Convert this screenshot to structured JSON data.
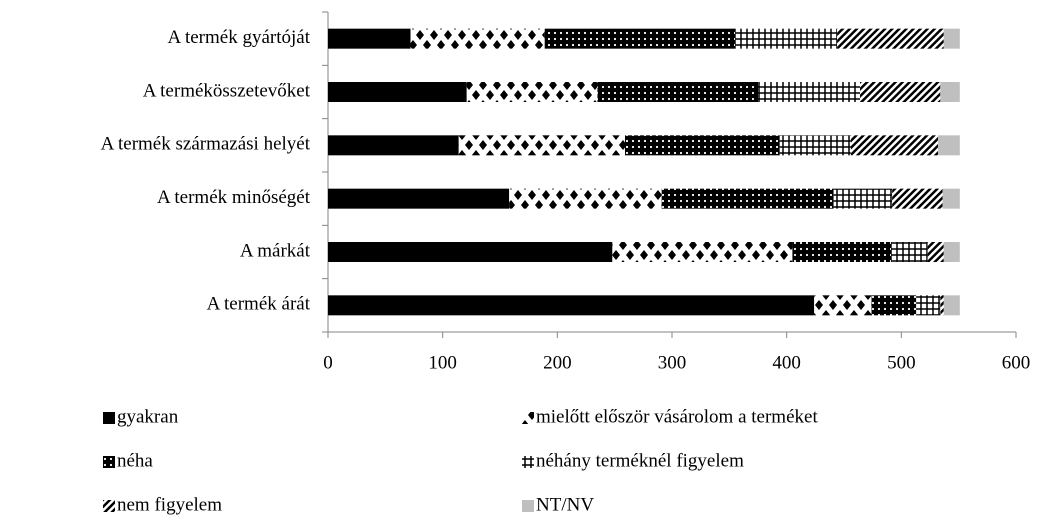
{
  "chart_data": {
    "type": "stacked-bar-horizontal",
    "categories": [
      "A termék gyártóját",
      "A termékösszetevőket",
      "A termék származási helyét",
      "A termék minőségét",
      "A márkát",
      "A termék árát"
    ],
    "series": [
      {
        "name": "gyakran",
        "color": "#000000",
        "pattern": "solid",
        "values": [
          72,
          121,
          114,
          158,
          248,
          424
        ]
      },
      {
        "name": "mielőtt először vásárolom a terméket",
        "color": "#000000",
        "pattern": "diamonds",
        "values": [
          117,
          114,
          145,
          133,
          157,
          50
        ]
      },
      {
        "name": "néha",
        "color": "#000000",
        "pattern": "dots",
        "values": [
          166,
          140,
          135,
          150,
          86,
          39
        ]
      },
      {
        "name": "néhány terméknél figyelem",
        "color": "#000000",
        "pattern": "grid",
        "values": [
          89,
          89,
          62,
          51,
          32,
          21
        ]
      },
      {
        "name": "nem figyelem",
        "color": "#000000",
        "pattern": "diagonal",
        "values": [
          93,
          70,
          76,
          44,
          14,
          3
        ]
      },
      {
        "name": "NT/NV",
        "color": "#bfbfbf",
        "pattern": "solid",
        "values": [
          14,
          17,
          19,
          15,
          14,
          14
        ]
      }
    ],
    "xlim": [
      0,
      600
    ],
    "xticks": [
      0,
      100,
      200,
      300,
      400,
      500,
      600
    ],
    "grid": false,
    "legend": "bottom"
  }
}
